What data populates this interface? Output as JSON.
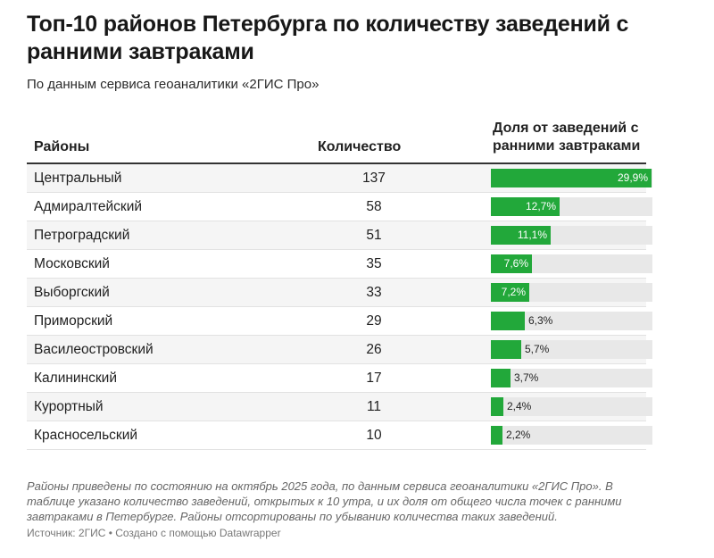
{
  "chart_data": {
    "type": "table",
    "title": "Топ-10 районов Петербурга по количеству заведений с ранними завтраками",
    "subtitle": "По данным сервиса геоаналитики «2ГИС Про»",
    "columns": [
      "Районы",
      "Количество",
      "Доля от заведений с ранними завтраками"
    ],
    "bar_max": 30,
    "bar_color": "#22a83a",
    "rows": [
      {
        "name": "Центральный",
        "count": "137",
        "share": 29.9,
        "share_label": "29,9%"
      },
      {
        "name": "Адмиралтейский",
        "count": "58",
        "share": 12.7,
        "share_label": "12,7%"
      },
      {
        "name": "Петроградский",
        "count": "51",
        "share": 11.1,
        "share_label": "11,1%"
      },
      {
        "name": "Московский",
        "count": "35",
        "share": 7.6,
        "share_label": "7,6%"
      },
      {
        "name": "Выборгский",
        "count": "33",
        "share": 7.2,
        "share_label": "7,2%"
      },
      {
        "name": "Приморский",
        "count": "29",
        "share": 6.3,
        "share_label": "6,3%"
      },
      {
        "name": "Василеостровский",
        "count": "26",
        "share": 5.7,
        "share_label": "5,7%"
      },
      {
        "name": "Калининский",
        "count": "17",
        "share": 3.7,
        "share_label": "3,7%"
      },
      {
        "name": "Курортный",
        "count": "11",
        "share": 2.4,
        "share_label": "2,4%"
      },
      {
        "name": "Красносельский",
        "count": "10",
        "share": 2.2,
        "share_label": "2,2%"
      }
    ],
    "note": "Районы приведены по состоянию на октябрь 2025 года, по данным сервиса геоаналитики «2ГИС Про». В таблице указано количество заведений, открытых к 10 утра, и их доля от общего числа точек с ранними завтраками в Петербурге. Районы отсортированы по убыванию количества таких заведений.",
    "source": "Источник: 2ГИС • Создано с помощью Datawrapper"
  }
}
